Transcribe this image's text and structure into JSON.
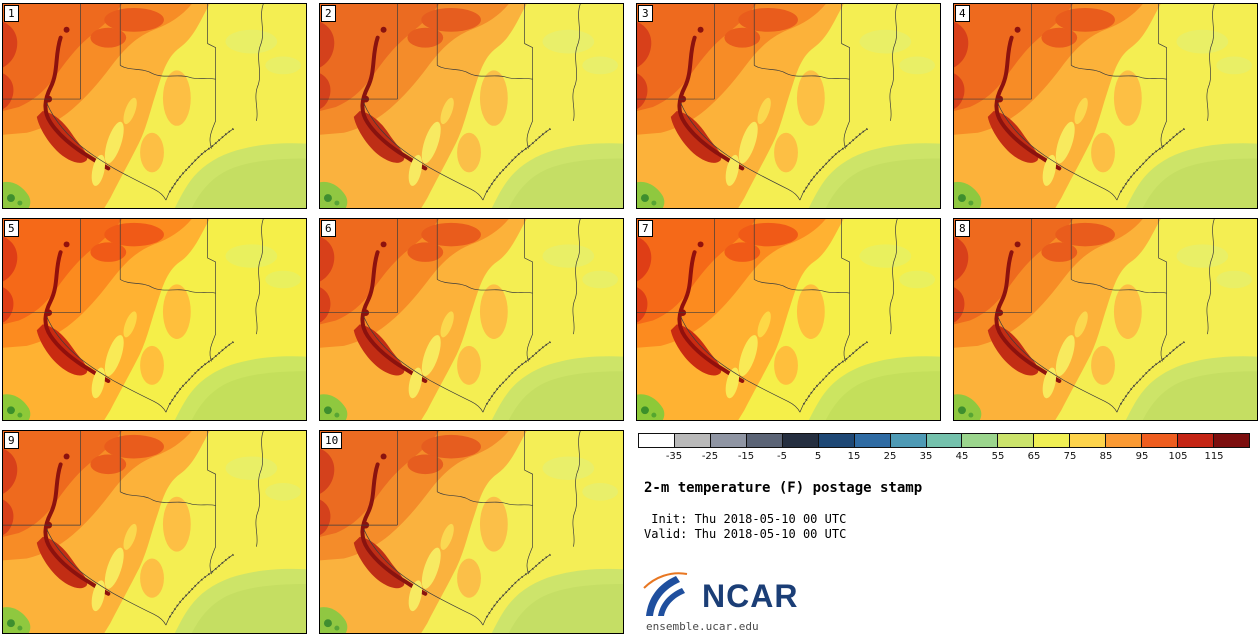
{
  "figure": {
    "title": "2-m temperature (F) postage stamp",
    "init_line": " Init: Thu 2018-05-10 00 UTC",
    "valid_line": "Valid: Thu 2018-05-10 00 UTC",
    "site": "ensemble.ucar.edu",
    "logo_text": "NCAR"
  },
  "stamps": [
    "1",
    "2",
    "3",
    "4",
    "5",
    "6",
    "7",
    "8",
    "9",
    "10"
  ],
  "colorbar": {
    "units": "F",
    "tick_labels": [
      "-35",
      "-25",
      "-15",
      "-5",
      "5",
      "15",
      "25",
      "35",
      "45",
      "55",
      "65",
      "75",
      "85",
      "95",
      "105",
      "115"
    ],
    "colors": [
      "#ffffff",
      "#b9b9b9",
      "#8f95a3",
      "#5b6476",
      "#252f40",
      "#1e4875",
      "#2f6ba3",
      "#4e9ab5",
      "#74c1ac",
      "#9bd58d",
      "#cbe36b",
      "#f0ef54",
      "#fdd34b",
      "#fb9a33",
      "#ee5d1f",
      "#c42414",
      "#7c0e0e"
    ]
  },
  "chart_data": {
    "type": "heatmap",
    "title": "2-m temperature (F) postage stamp",
    "variable": "2-m temperature",
    "units": "F",
    "ensemble_members": [
      1,
      2,
      3,
      4,
      5,
      6,
      7,
      8,
      9,
      10
    ],
    "init_time": "Thu 2018-05-10 00 UTC",
    "valid_time": "Thu 2018-05-10 00 UTC",
    "colorbar_ticks": [
      -35,
      -25,
      -15,
      -5,
      5,
      15,
      25,
      35,
      45,
      55,
      65,
      75,
      85,
      95,
      105,
      115
    ],
    "colorbar_colors": [
      "#ffffff",
      "#b9b9b9",
      "#8f95a3",
      "#5b6476",
      "#252f40",
      "#1e4875",
      "#2f6ba3",
      "#4e9ab5",
      "#74c1ac",
      "#9bd58d",
      "#cbe36b",
      "#f0ef54",
      "#fdd34b",
      "#fb9a33",
      "#ee5d1f",
      "#c42414",
      "#7c0e0e"
    ],
    "layout": "10 ensemble-member map panels in a 4x4x2 grid, legend block at bottom right",
    "region": "South-central United States (Texas and neighboring states, Gulf of Mexico coast)",
    "value_pattern": "Hot (95-105 F) in west/northwest, warm (75-95 F) central, mild (65-85 F) east, cooler green (55-65 F) over Gulf waters"
  }
}
